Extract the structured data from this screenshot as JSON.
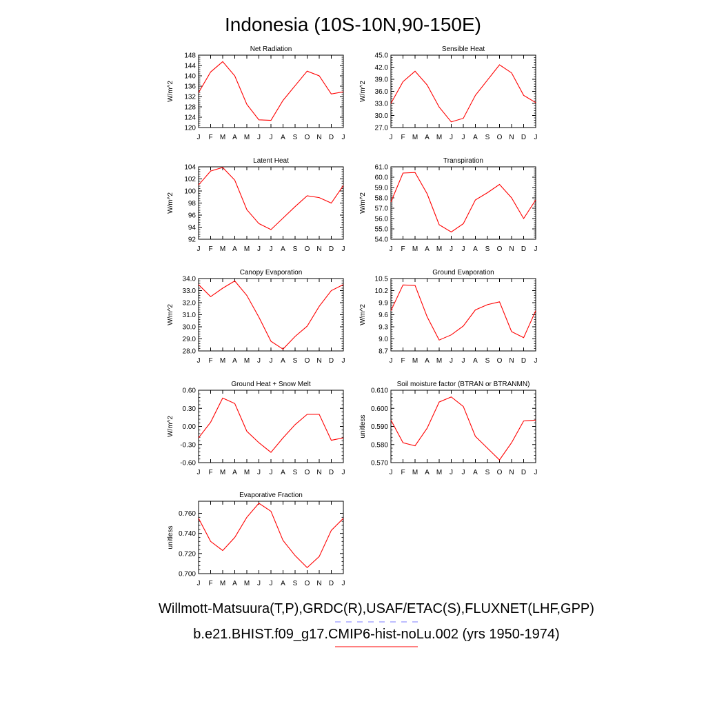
{
  "figure": {
    "title": "Indonesia (10S-10N,90-150E)",
    "legend_obs": "Willmott-Matsuura(T,P),GRDC(R),USAF/ETAC(S),FLUXNET(LHF,GPP)",
    "legend_model": "b.e21.BHIST.f09_g17.CMIP6-hist-noLu.002 (yrs 1950-1974)",
    "obs_color": "#7b7bff",
    "model_color": "#ff0000"
  },
  "chart_data": [
    {
      "type": "line",
      "title": "Net Radiation",
      "ylabel": "W/m^2",
      "categories": [
        "J",
        "F",
        "M",
        "A",
        "M",
        "J",
        "J",
        "A",
        "S",
        "O",
        "N",
        "D",
        "J"
      ],
      "ylim": [
        120,
        148
      ],
      "yticks": [
        "120",
        "124",
        "128",
        "132",
        "136",
        "140",
        "144",
        "148"
      ],
      "series": [
        {
          "values": [
            133.5,
            141.5,
            145.5,
            140.0,
            129.0,
            123.0,
            122.8,
            130.5,
            136.2,
            141.8,
            140.0,
            133.0,
            133.8
          ],
          "color": "#ff0000"
        }
      ]
    },
    {
      "type": "line",
      "title": "Sensible Heat",
      "ylabel": "W/m^2",
      "categories": [
        "J",
        "F",
        "M",
        "A",
        "M",
        "J",
        "J",
        "A",
        "S",
        "O",
        "N",
        "D",
        "J"
      ],
      "ylim": [
        27.0,
        45.0
      ],
      "yticks": [
        "27.0",
        "30.0",
        "33.0",
        "36.0",
        "39.0",
        "42.0",
        "45.0"
      ],
      "series": [
        {
          "values": [
            33.0,
            38.4,
            41.0,
            37.6,
            32.1,
            28.4,
            29.3,
            35.0,
            38.8,
            42.6,
            40.6,
            35.0,
            33.2
          ],
          "color": "#ff0000"
        }
      ]
    },
    {
      "type": "line",
      "title": "Latent Heat",
      "ylabel": "W/m^2",
      "categories": [
        "J",
        "F",
        "M",
        "A",
        "M",
        "J",
        "J",
        "A",
        "S",
        "O",
        "N",
        "D",
        "J"
      ],
      "ylim": [
        92,
        104
      ],
      "yticks": [
        "92",
        "94",
        "96",
        "98",
        "100",
        "102",
        "104"
      ],
      "series": [
        {
          "values": [
            101.0,
            103.3,
            103.9,
            101.8,
            96.9,
            94.6,
            93.6,
            95.5,
            97.4,
            99.2,
            98.9,
            98.0,
            100.9
          ],
          "color": "#ff0000"
        }
      ]
    },
    {
      "type": "line",
      "title": "Transpiration",
      "ylabel": "W/m^2",
      "categories": [
        "J",
        "F",
        "M",
        "A",
        "M",
        "J",
        "J",
        "A",
        "S",
        "O",
        "N",
        "D",
        "J"
      ],
      "ylim": [
        54.0,
        61.0
      ],
      "yticks": [
        "54.0",
        "55.0",
        "56.0",
        "57.0",
        "58.0",
        "59.0",
        "60.0",
        "61.0"
      ],
      "series": [
        {
          "values": [
            57.6,
            60.4,
            60.45,
            58.4,
            55.4,
            54.7,
            55.5,
            57.8,
            58.5,
            59.3,
            58.0,
            56.0,
            57.8
          ],
          "color": "#ff0000"
        }
      ]
    },
    {
      "type": "line",
      "title": "Canopy Evaporation",
      "ylabel": "W/m^2",
      "categories": [
        "J",
        "F",
        "M",
        "A",
        "M",
        "J",
        "J",
        "A",
        "S",
        "O",
        "N",
        "D",
        "J"
      ],
      "ylim": [
        28.0,
        34.0
      ],
      "yticks": [
        "28.0",
        "29.0",
        "30.0",
        "31.0",
        "32.0",
        "33.0",
        "34.0"
      ],
      "series": [
        {
          "values": [
            33.5,
            32.5,
            33.2,
            33.8,
            32.6,
            30.8,
            28.8,
            28.15,
            29.2,
            30.05,
            31.7,
            33.0,
            33.5
          ],
          "color": "#ff0000"
        }
      ]
    },
    {
      "type": "line",
      "title": "Ground Evaporation",
      "ylabel": "W/m^2",
      "categories": [
        "J",
        "F",
        "M",
        "A",
        "M",
        "J",
        "J",
        "A",
        "S",
        "O",
        "N",
        "D",
        "J"
      ],
      "ylim": [
        8.7,
        10.5
      ],
      "yticks": [
        "8.7",
        "9.0",
        "9.3",
        "9.6",
        "9.9",
        "10.2",
        "10.5"
      ],
      "series": [
        {
          "values": [
            9.7,
            10.34,
            10.33,
            9.55,
            8.97,
            9.1,
            9.32,
            9.72,
            9.85,
            9.92,
            9.18,
            9.03,
            9.7
          ],
          "color": "#ff0000"
        }
      ]
    },
    {
      "type": "line",
      "title": "Ground Heat + Snow Melt",
      "ylabel": "W/m^2",
      "categories": [
        "J",
        "F",
        "M",
        "A",
        "M",
        "J",
        "J",
        "A",
        "S",
        "O",
        "N",
        "D",
        "J"
      ],
      "ylim": [
        -0.6,
        0.6
      ],
      "yticks": [
        "-0.60",
        "-0.30",
        "0.00",
        "0.30",
        "0.60"
      ],
      "series": [
        {
          "values": [
            -0.19,
            0.07,
            0.47,
            0.38,
            -0.08,
            -0.27,
            -0.43,
            -0.19,
            0.03,
            0.2,
            0.2,
            -0.23,
            -0.19
          ],
          "color": "#ff0000"
        }
      ]
    },
    {
      "type": "line",
      "title": "Soil moisture factor (BTRAN or BTRANMN)",
      "ylabel": "unitless",
      "categories": [
        "J",
        "F",
        "M",
        "A",
        "M",
        "J",
        "J",
        "A",
        "S",
        "O",
        "N",
        "D",
        "J"
      ],
      "ylim": [
        0.57,
        0.61
      ],
      "yticks": [
        "0.570",
        "0.580",
        "0.590",
        "0.600",
        "0.610"
      ],
      "series": [
        {
          "values": [
            0.5935,
            0.581,
            0.5793,
            0.589,
            0.6035,
            0.6063,
            0.601,
            0.5845,
            0.578,
            0.5715,
            0.581,
            0.593,
            0.5935
          ],
          "color": "#ff0000"
        }
      ]
    },
    {
      "type": "line",
      "title": "Evaporative Fraction",
      "ylabel": "unitless",
      "categories": [
        "J",
        "F",
        "M",
        "A",
        "M",
        "J",
        "J",
        "A",
        "S",
        "O",
        "N",
        "D",
        "J"
      ],
      "ylim": [
        0.7,
        0.772
      ],
      "yticks": [
        "0.700",
        "0.720",
        "0.740",
        "0.760"
      ],
      "series": [
        {
          "values": [
            0.755,
            0.732,
            0.723,
            0.736,
            0.756,
            0.77,
            0.762,
            0.733,
            0.718,
            0.706,
            0.717,
            0.743,
            0.755
          ],
          "color": "#ff0000"
        }
      ]
    }
  ]
}
